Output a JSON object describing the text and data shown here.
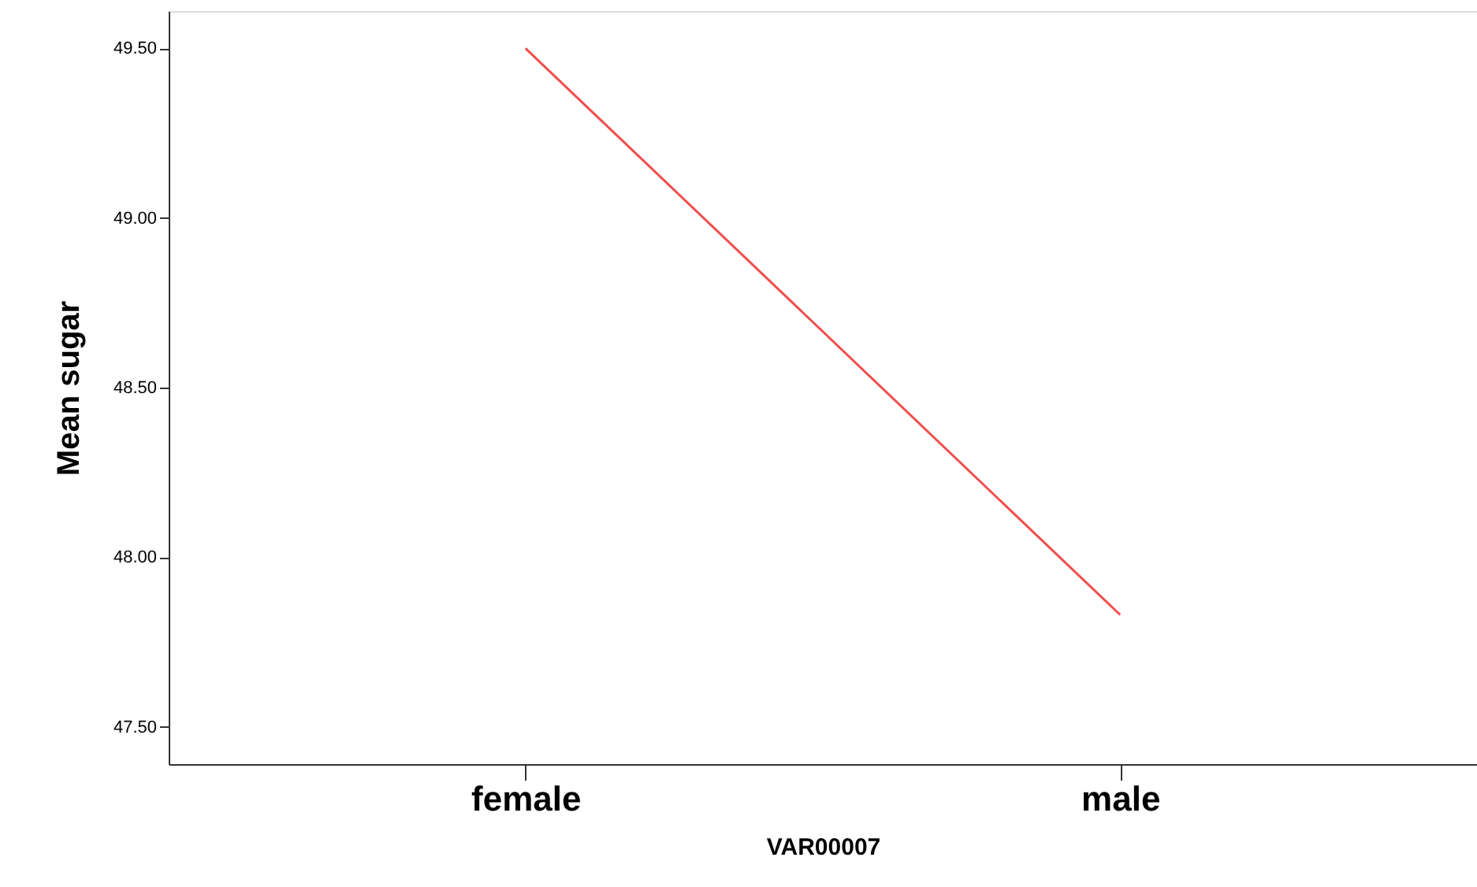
{
  "chart_data": {
    "type": "line",
    "xlabel": "VAR00007",
    "ylabel": "Mean sugar",
    "categories": [
      "female",
      "male"
    ],
    "series": [
      {
        "color": "#f04e4e",
        "values": [
          49.5,
          47.83
        ]
      }
    ],
    "ylim": [
      47.39,
      49.61
    ],
    "yticks": [
      {
        "value": 47.5,
        "label": "47.50"
      },
      {
        "value": 48.0,
        "label": "48.00"
      },
      {
        "value": 48.5,
        "label": "48.50"
      },
      {
        "value": 49.0,
        "label": "49.00"
      },
      {
        "value": 49.5,
        "label": "49.50"
      }
    ],
    "grid": false,
    "marker": "none",
    "line_style": "solid"
  }
}
